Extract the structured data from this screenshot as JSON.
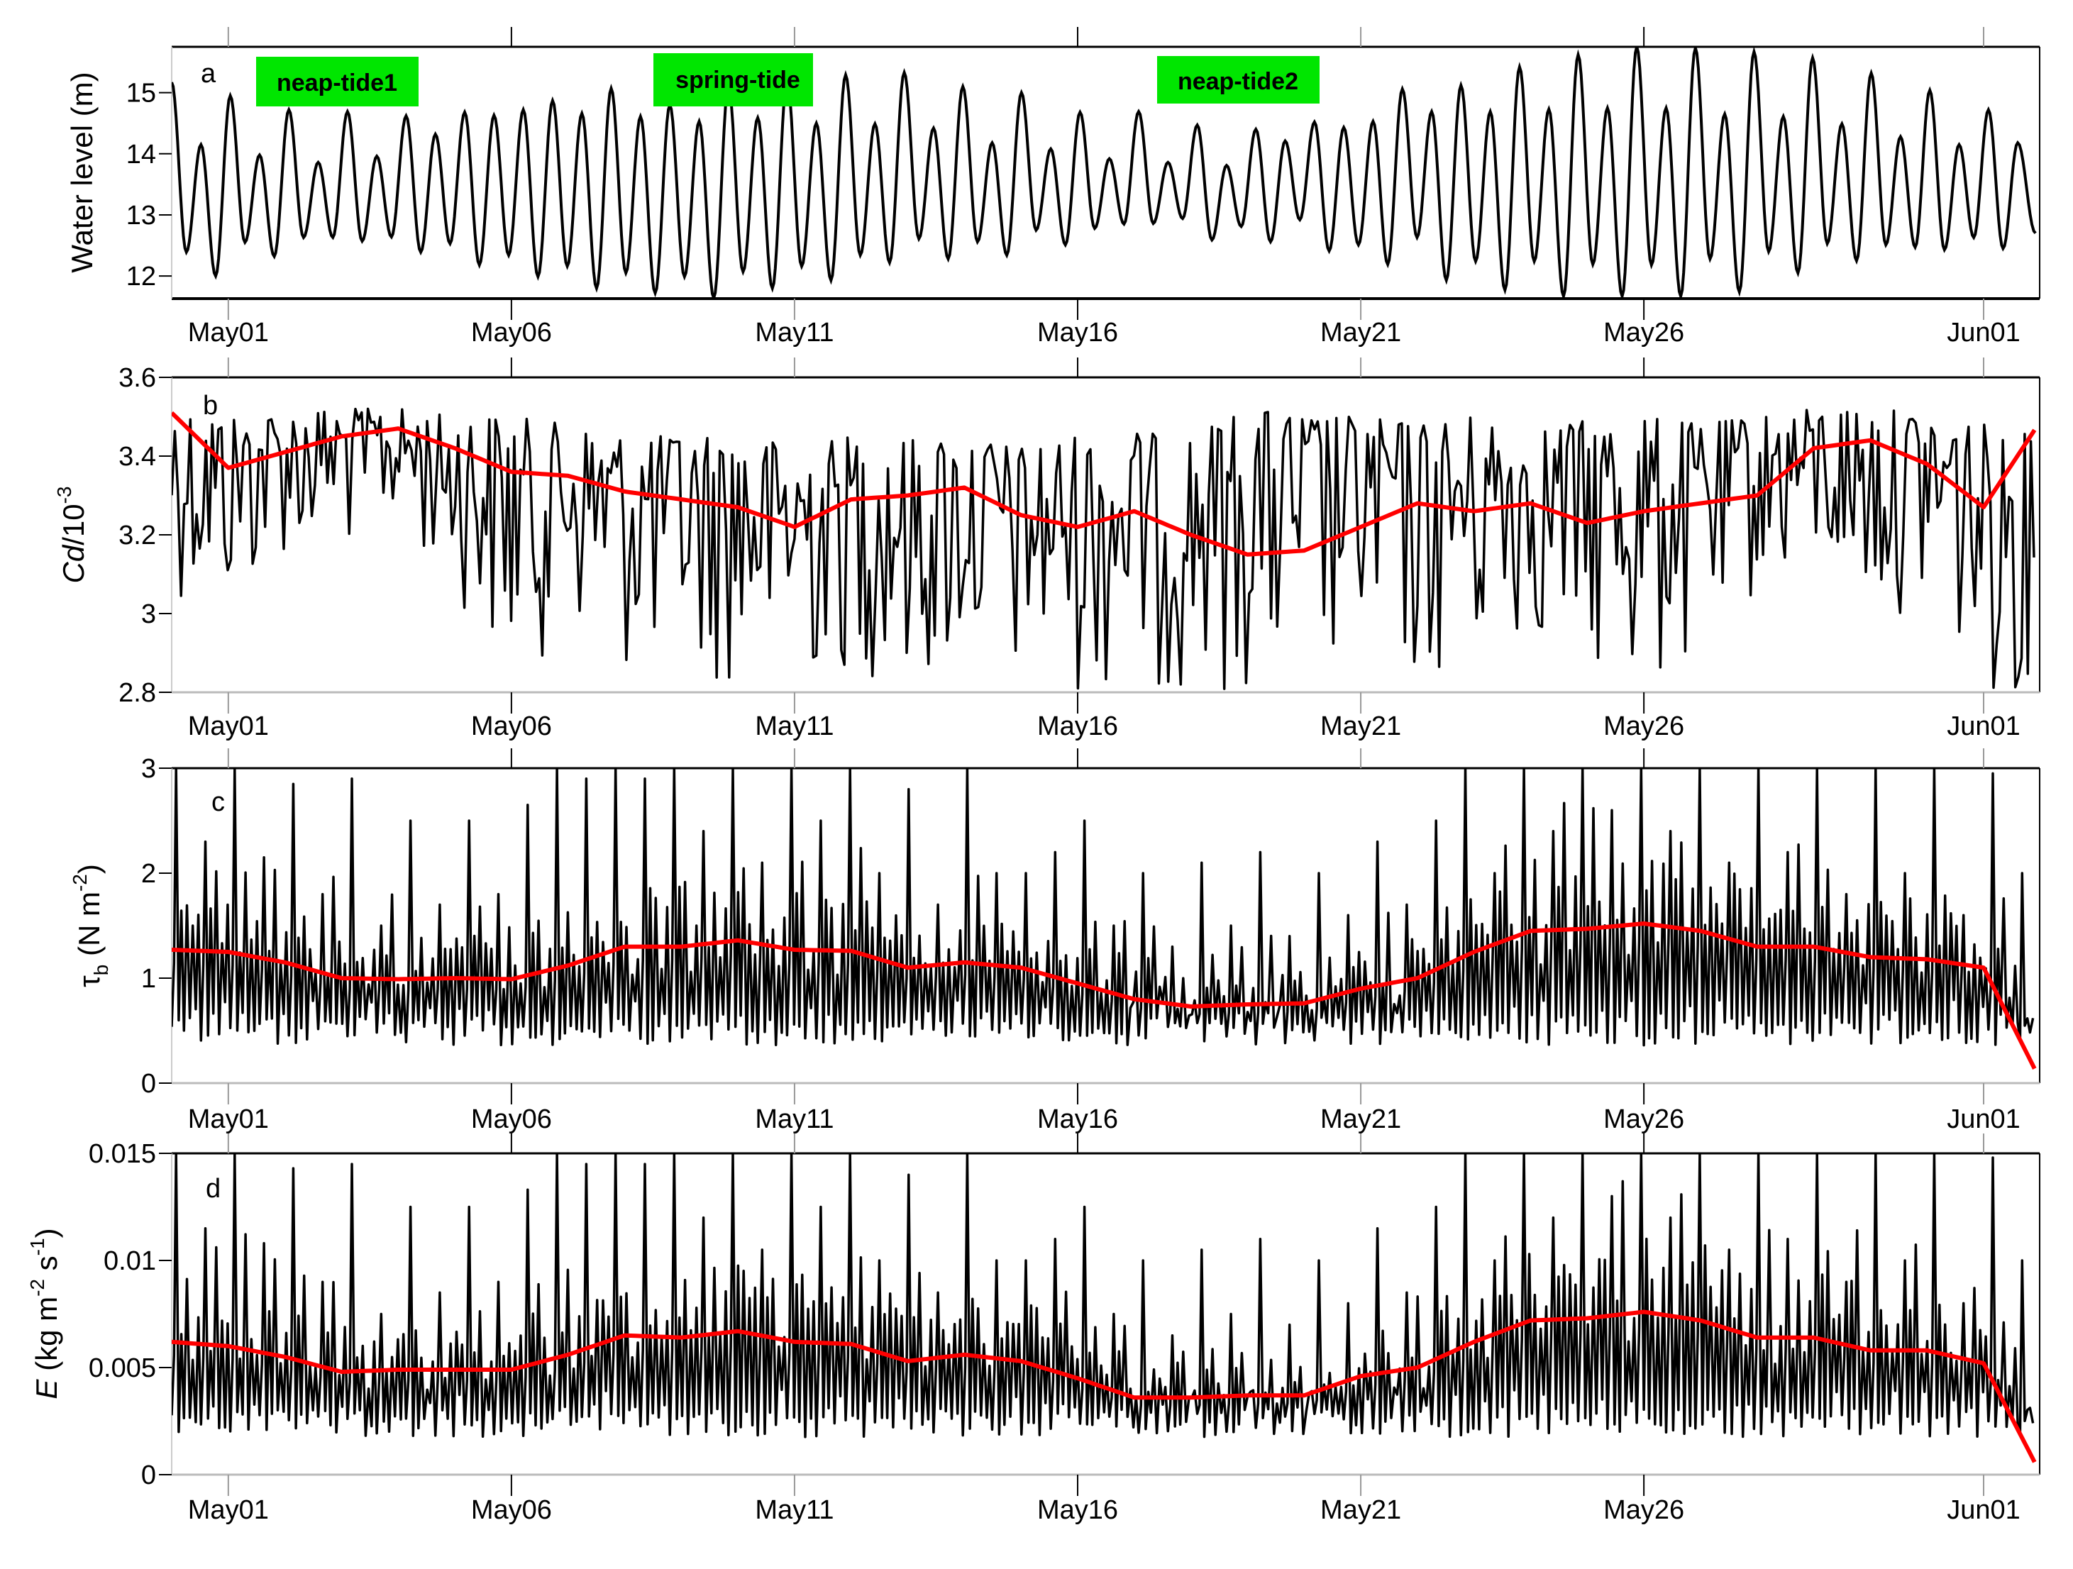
{
  "chart_data": [
    {
      "type": "line",
      "panel_label": "a",
      "ylabel": {
        "main": "Water level (m)"
      },
      "xlim": [
        "Apr30 00:00",
        "Jun01 22:00"
      ],
      "ylim": [
        11.63,
        15.75
      ],
      "yticks": [
        "12",
        "13",
        "14",
        "15"
      ],
      "xticks": [
        "May01",
        "May06",
        "May11",
        "May16",
        "May21",
        "May26",
        "Jun01"
      ],
      "annotations": [
        {
          "text": "neap-tide1",
          "color": "#00e600"
        },
        {
          "text": "spring-tide",
          "color": "#00e600"
        },
        {
          "text": "neap-tide2",
          "color": "#00e600"
        }
      ],
      "series": [
        {
          "color": "#000000",
          "high_water": [
            15.17,
            14.15,
            14.95,
            13.98,
            14.72,
            13.86,
            14.69,
            13.96,
            14.62,
            14.32,
            14.68,
            14.63,
            14.72,
            14.87,
            14.66,
            15.07,
            14.61,
            14.8,
            14.53,
            15.1,
            14.59,
            15.2,
            14.5,
            15.29,
            14.49,
            15.33,
            14.42,
            15.1,
            14.18,
            15.0,
            14.08,
            14.68,
            13.92,
            14.69,
            13.86,
            14.47,
            13.81,
            14.4,
            14.21,
            14.52,
            14.43,
            14.53,
            15.06,
            14.69,
            15.12,
            14.69,
            15.42,
            14.73,
            15.62,
            14.75,
            15.75,
            14.75,
            15.73,
            14.65,
            15.67,
            14.61,
            15.57,
            14.49,
            15.32,
            14.28,
            15.04,
            14.15,
            14.72,
            14.18
          ],
          "low_water": [
            12.39,
            12.0,
            12.55,
            12.32,
            12.63,
            12.63,
            12.57,
            12.64,
            12.39,
            12.53,
            12.18,
            12.34,
            11.99,
            12.16,
            11.8,
            12.05,
            11.72,
            11.99,
            11.64,
            12.07,
            11.8,
            12.16,
            11.93,
            12.34,
            12.22,
            12.61,
            12.28,
            12.56,
            12.34,
            12.75,
            12.51,
            12.78,
            12.85,
            12.86,
            12.94,
            12.59,
            12.81,
            12.56,
            12.92,
            12.41,
            12.51,
            12.19,
            12.63,
            11.93,
            12.24,
            11.77,
            12.24,
            11.67,
            12.19,
            11.67,
            12.18,
            11.67,
            12.28,
            11.74,
            12.4,
            12.05,
            12.53,
            12.25,
            12.51,
            12.47,
            12.43,
            12.63,
            12.45
          ],
          "end_value": 12.7
        }
      ]
    },
    {
      "type": "line",
      "panel_label": "b",
      "ylabel": {
        "main": "Cd",
        "rest": "/10",
        "sup": "-3"
      },
      "xlim": [
        "Apr30 00:00",
        "Jun01 22:00"
      ],
      "ylim": [
        2.8,
        3.6
      ],
      "yticks": [
        "2.8",
        "3",
        "3.2",
        "3.4",
        "3.6"
      ],
      "xticks": [
        "May01",
        "May06",
        "May11",
        "May16",
        "May21",
        "May26",
        "Jun01"
      ],
      "x": [
        "Apr30",
        "May01",
        "May02",
        "May03",
        "May04",
        "May05",
        "May06",
        "May07",
        "May08",
        "May09",
        "May10",
        "May11",
        "May12",
        "May13",
        "May14",
        "May15",
        "May16",
        "May17",
        "May18",
        "May19",
        "May20",
        "May21",
        "May22",
        "May23",
        "May24",
        "May25",
        "May26",
        "May27",
        "May28",
        "May29",
        "May30",
        "May31",
        "Jun01",
        "Jun01 22:00"
      ],
      "series": [
        {
          "color": "#000000",
          "daily_max": [
            3.52,
            3.5,
            3.51,
            3.52,
            3.52,
            3.5,
            3.5,
            3.48,
            3.45,
            3.45,
            3.46,
            3.42,
            3.45,
            3.44,
            3.45,
            3.42,
            3.45,
            3.46,
            3.45,
            3.52,
            3.5,
            3.5,
            3.48,
            3.5,
            3.47,
            3.49,
            3.5,
            3.48,
            3.5,
            3.52,
            3.52,
            3.51,
            3.48,
            3.45
          ],
          "daily_min": [
            3.05,
            3.0,
            3.15,
            3.16,
            3.22,
            3.05,
            2.82,
            2.95,
            2.85,
            2.85,
            2.8,
            2.8,
            2.85,
            2.8,
            2.85,
            2.8,
            2.8,
            2.8,
            2.8,
            2.8,
            2.8,
            2.85,
            2.8,
            2.85,
            2.95,
            2.85,
            2.8,
            2.85,
            3.05,
            3.1,
            3.0,
            3.0,
            2.8,
            2.8
          ]
        },
        {
          "color": "#ff0000",
          "values": [
            3.51,
            3.37,
            3.41,
            3.45,
            3.47,
            3.42,
            3.36,
            3.35,
            3.31,
            3.29,
            3.27,
            3.22,
            3.29,
            3.3,
            3.32,
            3.25,
            3.22,
            3.26,
            3.2,
            3.15,
            3.16,
            3.22,
            3.28,
            3.26,
            3.28,
            3.23,
            3.26,
            3.28,
            3.3,
            3.42,
            3.44,
            3.38,
            3.27,
            3.47
          ]
        }
      ]
    },
    {
      "type": "line",
      "panel_label": "c",
      "ylabel": {
        "main": "τ",
        "sub": "b",
        "rest": " (N m",
        "sup": "-2",
        "end": ")"
      },
      "xlim": [
        "Apr30 00:00",
        "Jun01 22:00"
      ],
      "ylim": [
        0,
        3
      ],
      "yticks": [
        "0",
        "1",
        "2",
        "3"
      ],
      "xticks": [
        "May01",
        "May06",
        "May11",
        "May16",
        "May21",
        "May26",
        "Jun01"
      ],
      "x": [
        "Apr30",
        "May01",
        "May02",
        "May03",
        "May04",
        "May05",
        "May06",
        "May07",
        "May08",
        "May09",
        "May10",
        "May11",
        "May12",
        "May13",
        "May14",
        "May15",
        "May16",
        "May17",
        "May18",
        "May19",
        "May20",
        "May21",
        "May22",
        "May23",
        "May24",
        "May25",
        "May26",
        "May27",
        "May28",
        "May29",
        "May30",
        "May31",
        "Jun01",
        "Jun01 22:00"
      ],
      "series": [
        {
          "color": "#000000",
          "tidal_peaks": [
            3,
            2.3,
            3,
            2.15,
            2.85,
            1.8,
            2.9,
            1.5,
            2.5,
            1.7,
            2.5,
            1.8,
            2.65,
            3,
            2.9,
            3,
            2.9,
            3,
            2.4,
            3,
            2.1,
            3,
            2.5,
            3,
            2.0,
            2.8,
            1.7,
            3,
            2.0,
            2.0,
            2.2,
            2.5,
            1.5,
            2.0,
            1.3,
            2.1,
            1.5,
            2.2,
            1.4,
            2.0,
            1.6,
            2.3,
            1.7,
            2.5,
            3,
            2.0,
            3,
            2.4,
            3,
            2.6,
            3,
            2.4,
            3,
            2.1,
            3,
            2.2,
            3,
            1.8,
            3,
            2.0,
            3,
            1.6,
            2.95,
            2.0
          ],
          "trough_level": 0.45
        },
        {
          "color": "#ff0000",
          "values": [
            1.27,
            1.25,
            1.15,
            1.0,
            0.99,
            1.0,
            0.99,
            1.12,
            1.3,
            1.3,
            1.36,
            1.27,
            1.26,
            1.1,
            1.15,
            1.1,
            0.95,
            0.8,
            0.73,
            0.75,
            0.76,
            0.9,
            1.0,
            1.25,
            1.45,
            1.47,
            1.52,
            1.45,
            1.3,
            1.3,
            1.2,
            1.18,
            1.1,
            0.12
          ]
        }
      ]
    },
    {
      "type": "line",
      "panel_label": "d",
      "ylabel": {
        "main": "E",
        "rest": " (kg m",
        "sup": "-2",
        "mid": " s",
        "sup2": "-1",
        "end": ")"
      },
      "xlim": [
        "Apr30 00:00",
        "Jun01 22:00"
      ],
      "ylim": [
        0,
        0.015
      ],
      "yticks": [
        "0",
        "0.005",
        "0.01",
        "0.015"
      ],
      "xticks": [
        "May01",
        "May06",
        "May11",
        "May16",
        "May21",
        "May26",
        "Jun01"
      ],
      "x": [
        "Apr30",
        "May01",
        "May02",
        "May03",
        "May04",
        "May05",
        "May06",
        "May07",
        "May08",
        "May09",
        "May10",
        "May11",
        "May12",
        "May13",
        "May14",
        "May15",
        "May16",
        "May17",
        "May18",
        "May19",
        "May20",
        "May21",
        "May22",
        "May23",
        "May24",
        "May25",
        "May26",
        "May27",
        "May28",
        "May29",
        "May30",
        "May31",
        "Jun01",
        "Jun01 22:00"
      ],
      "series": [
        {
          "color": "#000000",
          "tidal_peaks": [
            0.015,
            0.0115,
            0.015,
            0.0108,
            0.0143,
            0.009,
            0.0145,
            0.0075,
            0.0125,
            0.0085,
            0.0125,
            0.009,
            0.0133,
            0.015,
            0.0145,
            0.015,
            0.0145,
            0.015,
            0.012,
            0.015,
            0.0105,
            0.015,
            0.0125,
            0.015,
            0.01,
            0.014,
            0.0085,
            0.015,
            0.01,
            0.01,
            0.011,
            0.0125,
            0.0075,
            0.01,
            0.0065,
            0.0105,
            0.0075,
            0.011,
            0.007,
            0.01,
            0.008,
            0.0115,
            0.0085,
            0.0125,
            0.015,
            0.01,
            0.015,
            0.012,
            0.015,
            0.013,
            0.015,
            0.012,
            0.015,
            0.0105,
            0.015,
            0.011,
            0.015,
            0.009,
            0.015,
            0.01,
            0.015,
            0.008,
            0.0148,
            0.01
          ],
          "trough_level": 0.0022
        },
        {
          "color": "#ff0000",
          "values": [
            0.0062,
            0.006,
            0.0055,
            0.0048,
            0.0049,
            0.0049,
            0.0049,
            0.0056,
            0.0065,
            0.0064,
            0.0067,
            0.0062,
            0.0061,
            0.0053,
            0.0056,
            0.0053,
            0.0045,
            0.0036,
            0.0036,
            0.0037,
            0.0037,
            0.0046,
            0.005,
            0.0062,
            0.0072,
            0.0073,
            0.0076,
            0.0072,
            0.0064,
            0.0064,
            0.0058,
            0.0058,
            0.0052,
            0.0005
          ]
        }
      ]
    }
  ]
}
